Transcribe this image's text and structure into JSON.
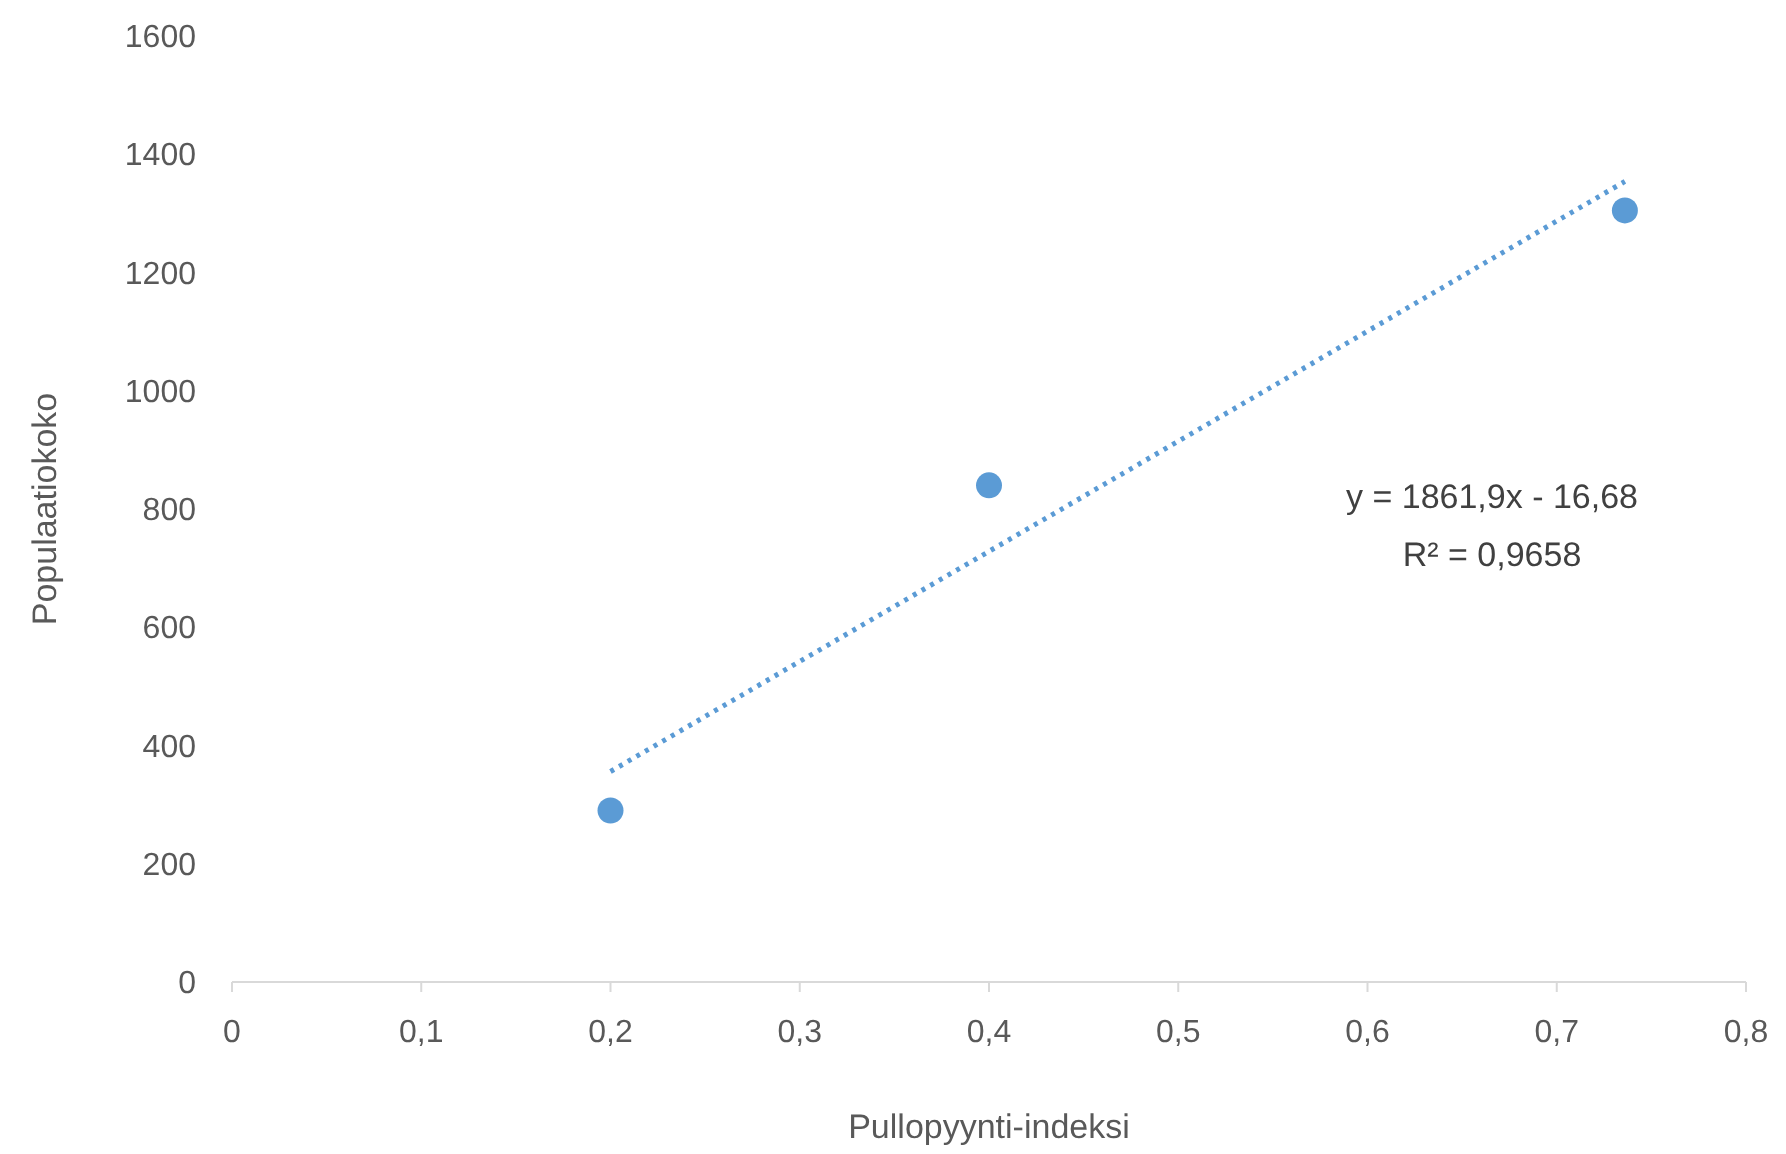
{
  "chart_data": {
    "type": "scatter",
    "xlabel": "Pullopyynti-indeksi",
    "ylabel": "Populaatiokoko",
    "x": [
      0.2,
      0.4,
      0.736
    ],
    "series": [
      {
        "color": "#5b9bd5",
        "values": [
          290,
          840,
          1305
        ],
        "marker": "circle"
      },
      {
        "type": "line",
        "color": "#5b9bd5",
        "x": [
          0.2,
          0.736
        ],
        "values": [
          356,
          1354
        ],
        "line_style": "dotted",
        "marker": "none"
      }
    ],
    "xlim": [
      0,
      0.8
    ],
    "xticks": [
      0,
      {
        "value": 0.1,
        "label": "0,1"
      },
      {
        "value": 0.2,
        "label": "0,2"
      },
      {
        "value": 0.3,
        "label": "0,3"
      },
      {
        "value": 0.4,
        "label": "0,4"
      },
      {
        "value": 0.5,
        "label": "0,5"
      },
      {
        "value": 0.6,
        "label": "0,6"
      },
      {
        "value": 0.7,
        "label": "0,7"
      },
      {
        "value": 0.8,
        "label": "0,8"
      }
    ],
    "ylim": [
      0,
      1600
    ],
    "yticks": [
      0,
      200,
      400,
      600,
      800,
      1000,
      1200,
      1400,
      1600
    ],
    "annotations": [
      "y = 1861,9x - 16,68",
      "R² = 0,9658"
    ]
  }
}
